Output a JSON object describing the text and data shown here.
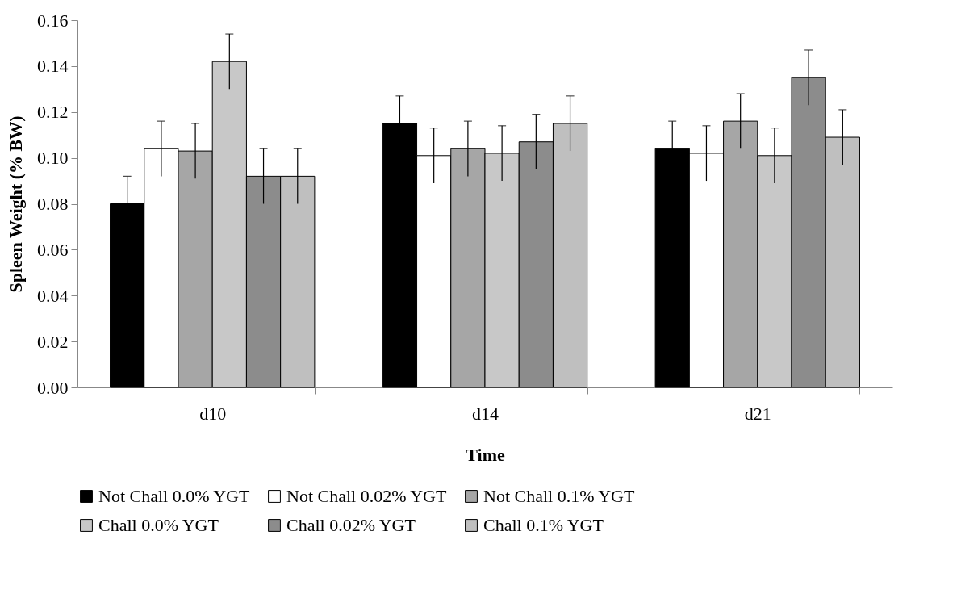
{
  "chart_data": {
    "type": "bar",
    "xlabel": "Time",
    "ylabel": "Spleen Weight (% BW)",
    "categories": [
      "d10",
      "d14",
      "d21"
    ],
    "series": [
      {
        "name": "Not Chall 0.0% YGT",
        "color": "#000000",
        "values": [
          0.08,
          0.115,
          0.104
        ],
        "errors": [
          0.012,
          0.012,
          0.012
        ]
      },
      {
        "name": "Not Chall 0.02% YGT",
        "color": "#ffffff",
        "values": [
          0.104,
          0.101,
          0.102
        ],
        "errors": [
          0.012,
          0.012,
          0.012
        ]
      },
      {
        "name": "Not Chall 0.1% YGT",
        "color": "#a6a6a6",
        "values": [
          0.103,
          0.104,
          0.116
        ],
        "errors": [
          0.012,
          0.012,
          0.012
        ]
      },
      {
        "name": "Chall 0.0% YGT",
        "color": "#c8c8c8",
        "values": [
          0.142,
          0.102,
          0.101
        ],
        "errors": [
          0.012,
          0.012,
          0.012
        ]
      },
      {
        "name": "Chall 0.02% YGT",
        "color": "#8c8c8c",
        "values": [
          0.092,
          0.107,
          0.135
        ],
        "errors": [
          0.012,
          0.012,
          0.012
        ]
      },
      {
        "name": "Chall 0.1% YGT",
        "color": "#bfbfbf",
        "values": [
          0.092,
          0.115,
          0.109
        ],
        "errors": [
          0.012,
          0.012,
          0.012
        ]
      }
    ],
    "ylim": [
      0,
      0.16
    ],
    "yticks": [
      {
        "value": 0,
        "label": "0.00"
      },
      {
        "value": 0.02,
        "label": "0.02"
      },
      {
        "value": 0.04,
        "label": "0.04"
      },
      {
        "value": 0.06,
        "label": "0.06"
      },
      {
        "value": 0.08,
        "label": "0.08"
      },
      {
        "value": 0.1,
        "label": "0.10"
      },
      {
        "value": 0.12,
        "label": "0.12"
      },
      {
        "value": 0.14,
        "label": "0.14"
      },
      {
        "value": 0.16,
        "label": "0.16"
      }
    ],
    "grid": false,
    "legend": "bottom"
  }
}
